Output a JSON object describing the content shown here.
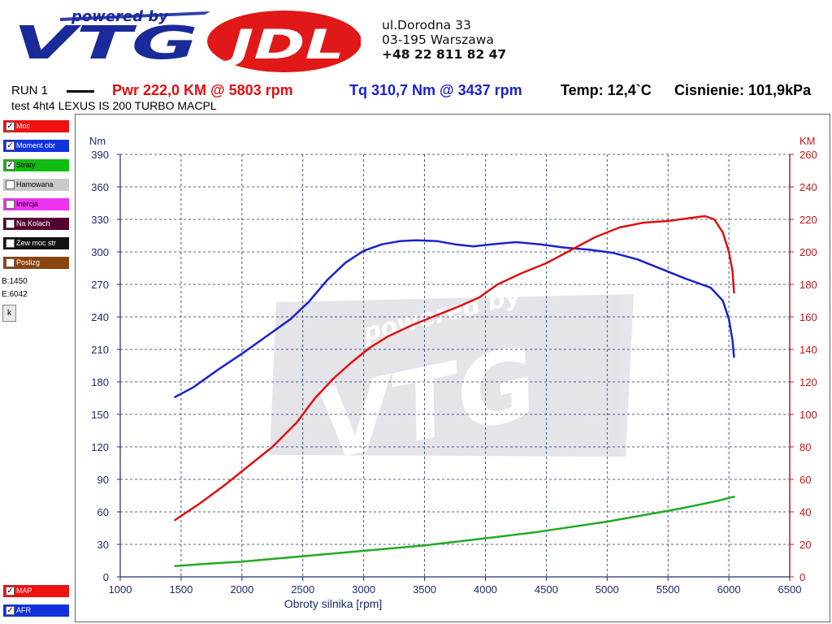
{
  "header": {
    "logo_text_powered": "powered by",
    "logo_text_vtg": "VTG",
    "logo_text_jdl": "JDL",
    "address_line1": "ul.Dorodna 33",
    "address_line2": "03-195 Warszawa",
    "phone": "+48 22 811 82 47"
  },
  "run": {
    "label": "RUN 1",
    "power": "Pwr  222,0 KM @ 5803 rpm",
    "torque": "Tq 310,7 Nm @ 3437 rpm",
    "temp": "Temp: 12,4`C",
    "pressure": "Cisnienie: 101,9kPa",
    "description": "test 4ht4 LEXUS IS 200 TURBO MACPL"
  },
  "legend": [
    {
      "label": "Moc",
      "checked": true,
      "color": "#ee1111"
    },
    {
      "label": "Moment obr",
      "checked": true,
      "color": "#1133dd"
    },
    {
      "label": "Straty",
      "checked": true,
      "color": "#11bb11"
    },
    {
      "label": "Hamowana",
      "checked": false,
      "color": "#c8c8c8"
    },
    {
      "label": "Inercja",
      "checked": false,
      "color": "#ee33ee"
    },
    {
      "label": "Na Kolach",
      "checked": false,
      "color": "#550033"
    },
    {
      "label": "Zew moc str",
      "checked": false,
      "color": "#111111"
    },
    {
      "label": "Poslizg",
      "checked": false,
      "color": "#884411"
    }
  ],
  "info": {
    "b": "B:1450",
    "e": "E:6042",
    "k_button": "k"
  },
  "bottom_legend": [
    {
      "label": "MAP",
      "checked": true,
      "color": "#ee1111"
    },
    {
      "label": "AFR",
      "checked": true,
      "color": "#1133dd"
    }
  ],
  "watermark": {
    "powered": "powered by",
    "brand": "VTG"
  },
  "chart_data": {
    "type": "line",
    "xlabel": "Obroty silnika [rpm]",
    "ylabel_left": "Nm",
    "ylabel_right": "KM",
    "xlim": [
      1000,
      6500
    ],
    "ylim_left": [
      0,
      390
    ],
    "ylim_right": [
      0,
      260
    ],
    "x_ticks": [
      1000,
      1500,
      2000,
      2500,
      3000,
      3500,
      4000,
      4500,
      5000,
      5500,
      6000,
      6500
    ],
    "y_left_ticks": [
      0,
      30,
      60,
      90,
      120,
      150,
      180,
      210,
      240,
      270,
      300,
      330,
      360,
      390
    ],
    "y_right_ticks": [
      0,
      20,
      40,
      60,
      80,
      100,
      120,
      140,
      160,
      180,
      200,
      220,
      240,
      260
    ],
    "grid": true,
    "series": [
      {
        "name": "Moment obr",
        "axis": "left",
        "color": "#1a22cc",
        "x": [
          1450,
          1600,
          1800,
          2000,
          2200,
          2400,
          2550,
          2700,
          2850,
          3000,
          3150,
          3300,
          3437,
          3600,
          3750,
          3900,
          4050,
          4250,
          4450,
          4650,
          4850,
          5050,
          5250,
          5450,
          5650,
          5850,
          5950,
          6000,
          6030,
          6042
        ],
        "y": [
          166,
          175,
          191,
          206,
          222,
          238,
          254,
          274,
          290,
          301,
          307,
          310,
          310.7,
          310,
          307,
          305,
          307,
          309,
          307,
          304,
          302,
          299,
          293,
          284,
          275,
          267,
          255,
          238,
          218,
          203
        ]
      },
      {
        "name": "Moc",
        "axis": "right",
        "color": "#dd1111",
        "x": [
          1450,
          1650,
          1850,
          2050,
          2250,
          2450,
          2600,
          2750,
          2900,
          3050,
          3200,
          3400,
          3600,
          3800,
          3950,
          4100,
          4300,
          4500,
          4700,
          4900,
          5100,
          5300,
          5500,
          5700,
          5803,
          5880,
          5950,
          6000,
          6030,
          6042
        ],
        "y": [
          35,
          45,
          56,
          68,
          80,
          95,
          110,
          122,
          132,
          141,
          148,
          155,
          161,
          167,
          172,
          180,
          187,
          193,
          201,
          209,
          215,
          218,
          219,
          221,
          222,
          220,
          212,
          200,
          188,
          175
        ]
      },
      {
        "name": "Straty",
        "axis": "left",
        "color": "#22aa22",
        "x": [
          1450,
          1700,
          2000,
          2300,
          2600,
          2900,
          3200,
          3500,
          3800,
          4100,
          4400,
          4700,
          5000,
          5300,
          5600,
          5900,
          6042
        ],
        "y": [
          10,
          12,
          14,
          17,
          20,
          23,
          26,
          29,
          33,
          37,
          41,
          46,
          51,
          57,
          63,
          70,
          74
        ]
      }
    ]
  }
}
